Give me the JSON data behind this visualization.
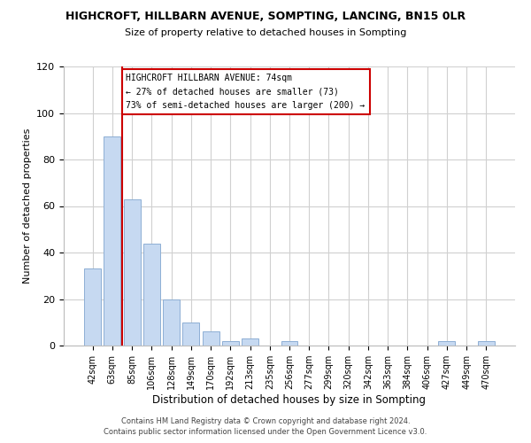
{
  "title1": "HIGHCROFT, HILLBARN AVENUE, SOMPTING, LANCING, BN15 0LR",
  "title2": "Size of property relative to detached houses in Sompting",
  "xlabel": "Distribution of detached houses by size in Sompting",
  "ylabel": "Number of detached properties",
  "bar_labels": [
    "42sqm",
    "63sqm",
    "85sqm",
    "106sqm",
    "128sqm",
    "149sqm",
    "170sqm",
    "192sqm",
    "213sqm",
    "235sqm",
    "256sqm",
    "277sqm",
    "299sqm",
    "320sqm",
    "342sqm",
    "363sqm",
    "384sqm",
    "406sqm",
    "427sqm",
    "449sqm",
    "470sqm"
  ],
  "bar_values": [
    33,
    90,
    63,
    44,
    20,
    10,
    6,
    2,
    3,
    0,
    2,
    0,
    0,
    0,
    0,
    0,
    0,
    0,
    2,
    0,
    2
  ],
  "bar_color": "#c6d9f1",
  "bar_edge_color": "#8eafd4",
  "vline_x": 1.5,
  "vline_color": "#cc0000",
  "annotation_title": "HIGHCROFT HILLBARN AVENUE: 74sqm",
  "annotation_line1": "← 27% of detached houses are smaller (73)",
  "annotation_line2": "73% of semi-detached houses are larger (200) →",
  "annotation_box_color": "#ffffff",
  "annotation_box_edge_color": "#cc0000",
  "ylim": [
    0,
    120
  ],
  "yticks": [
    0,
    20,
    40,
    60,
    80,
    100,
    120
  ],
  "footer1": "Contains HM Land Registry data © Crown copyright and database right 2024.",
  "footer2": "Contains public sector information licensed under the Open Government Licence v3.0.",
  "bg_color": "#ffffff",
  "grid_color": "#d0d0d0"
}
